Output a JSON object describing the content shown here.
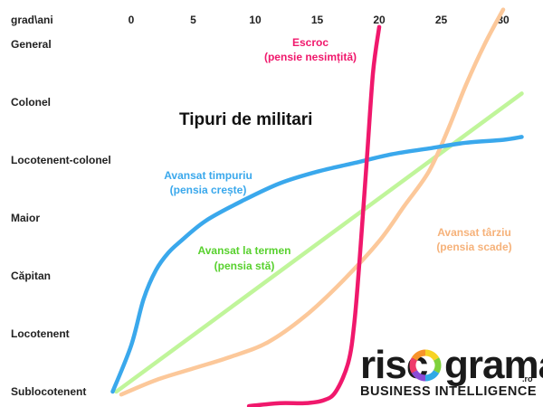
{
  "chart_data": {
    "type": "line",
    "title": "Tipuri de militari",
    "corner_label": "grad\\ani",
    "x_ticks": [
      0,
      5,
      10,
      15,
      20,
      25,
      30
    ],
    "xlim": [
      -1.5,
      32
    ],
    "y_ticks": [
      "Sublocotenent",
      "Locotenent",
      "Căpitan",
      "Maior",
      "Locotenent-colonel",
      "Colonel",
      "General"
    ],
    "ylim": [
      0,
      6
    ],
    "series": [
      {
        "name": "Avansat timpuriu",
        "note": "(pensia crește)",
        "color": "#3aa8ec",
        "points": [
          [
            -1.5,
            0
          ],
          [
            0,
            0.8
          ],
          [
            1,
            1.6
          ],
          [
            2,
            2.1
          ],
          [
            3,
            2.4
          ],
          [
            4,
            2.6
          ],
          [
            6,
            2.95
          ],
          [
            9,
            3.3
          ],
          [
            12,
            3.6
          ],
          [
            15,
            3.8
          ],
          [
            18,
            3.95
          ],
          [
            21,
            4.1
          ],
          [
            24,
            4.2
          ],
          [
            27,
            4.3
          ],
          [
            30,
            4.35
          ],
          [
            31.5,
            4.4
          ]
        ]
      },
      {
        "name": "Avansat la termen",
        "note": "(pensia stă)",
        "color": "#c0f59a",
        "points": [
          [
            -1.2,
            0
          ],
          [
            31.5,
            5.15
          ]
        ]
      },
      {
        "name": "Escroc",
        "note": "(pensie nesimțită)",
        "color": "#f0186c",
        "points": [
          [
            9.5,
            -0.25
          ],
          [
            12,
            -0.2
          ],
          [
            14,
            -0.2
          ],
          [
            15.5,
            -0.15
          ],
          [
            16.5,
            0
          ],
          [
            17.5,
            0.5
          ],
          [
            18,
            1.2
          ],
          [
            18.5,
            2.5
          ],
          [
            19,
            4
          ],
          [
            19.5,
            5.5
          ],
          [
            20,
            6.3
          ]
        ]
      },
      {
        "name": "Avansat târziu",
        "note": "(pensia scade)",
        "color": "#fcc89a",
        "points": [
          [
            -0.8,
            -0.05
          ],
          [
            2,
            0.2
          ],
          [
            5,
            0.4
          ],
          [
            8,
            0.6
          ],
          [
            11,
            0.85
          ],
          [
            14,
            1.3
          ],
          [
            17,
            1.9
          ],
          [
            20,
            2.6
          ],
          [
            22,
            3.2
          ],
          [
            24,
            3.8
          ],
          [
            25.5,
            4.5
          ],
          [
            27,
            5.3
          ],
          [
            28.5,
            6.0
          ],
          [
            30,
            6.6
          ]
        ]
      }
    ],
    "grid": false,
    "legend": "none"
  },
  "logo": {
    "name_left": "risc",
    "name_right": "grama",
    "domain": ".ro",
    "tagline": "BUSINESS INTELLIGENCE",
    "ring_colors": [
      "#f7d324",
      "#7fd13b",
      "#2fa9e6",
      "#8a4bd6",
      "#ef3b6b",
      "#f7932a"
    ]
  }
}
